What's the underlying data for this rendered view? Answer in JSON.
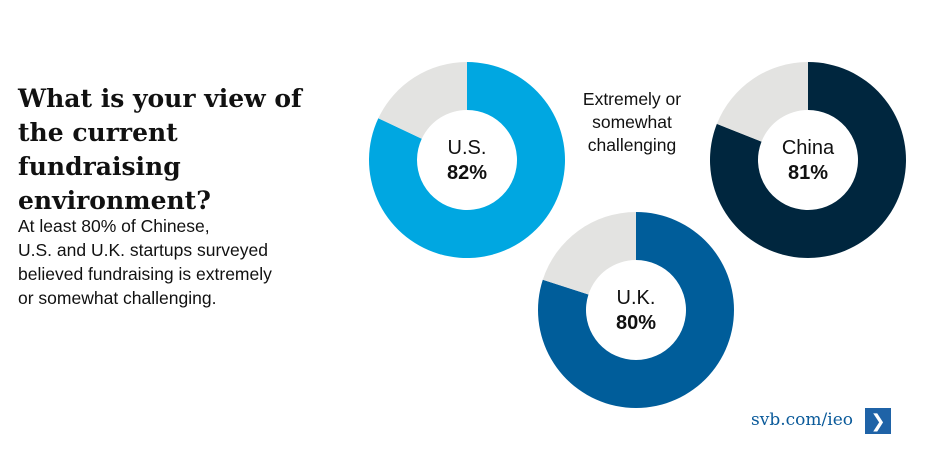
{
  "title": "What is your view of\nthe current fundraising\nenvironment?",
  "description": "At least 80% of Chinese,\nU.S. and U.K. startups surveyed\nbelieved fundraising is extremely\nor somewhat challenging.",
  "center_note": "Extremely or\nsomewhat\nchallenging",
  "footer": {
    "link_text": "svb.com/ieo",
    "arrow_icon": "chevron-right-icon",
    "link_color": "#0A5A9A",
    "arrow_bg": "#1F63A7"
  },
  "chart_data": {
    "type": "pie",
    "subtype": "donut",
    "series": [
      {
        "name": "U.S.",
        "value": 82,
        "value_label": "82%",
        "color": "#00A7E1",
        "remainder_color": "#E3E3E1"
      },
      {
        "name": "China",
        "value": 81,
        "value_label": "81%",
        "color": "#00263E",
        "remainder_color": "#E3E3E1"
      },
      {
        "name": "U.K.",
        "value": 80,
        "value_label": "80%",
        "color": "#005D9A",
        "remainder_color": "#E3E3E1"
      }
    ]
  }
}
